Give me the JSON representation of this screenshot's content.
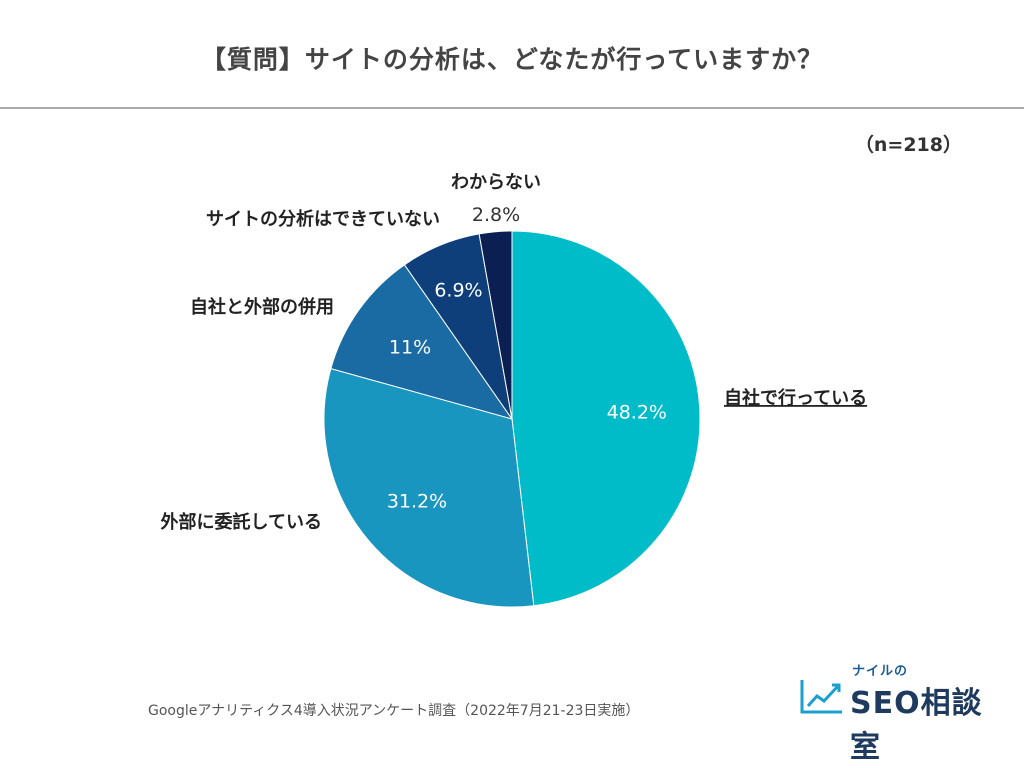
{
  "header": {
    "title": "【質問】サイトの分析は、どなたが行っていますか？",
    "sample_size": "（n=218）"
  },
  "footer": {
    "source": "Googleアナリティクス4導入状況アンケート調査（2022年7月21-23日実施）"
  },
  "logo": {
    "top_text": "ナイルの",
    "main_text": "SEO相談室"
  },
  "chart_data": {
    "type": "pie",
    "start_angle_deg": 0,
    "direction": "clockwise",
    "slices": [
      {
        "label": "自社で行っている",
        "value": 48.2,
        "value_label": "48.2%",
        "color": "#00BCC8",
        "highlight": true
      },
      {
        "label": "外部に委託している",
        "value": 31.2,
        "value_label": "31.2%",
        "color": "#1896BF"
      },
      {
        "label": "自社と外部の併用",
        "value": 11.0,
        "value_label": "11%",
        "color": "#1A6AA3"
      },
      {
        "label": "サイトの分析はできていない",
        "value": 6.9,
        "value_label": "6.9%",
        "color": "#0E3F7A"
      },
      {
        "label": "わからない",
        "value": 2.8,
        "value_label": "2.8%",
        "color": "#0C1F52"
      }
    ]
  }
}
